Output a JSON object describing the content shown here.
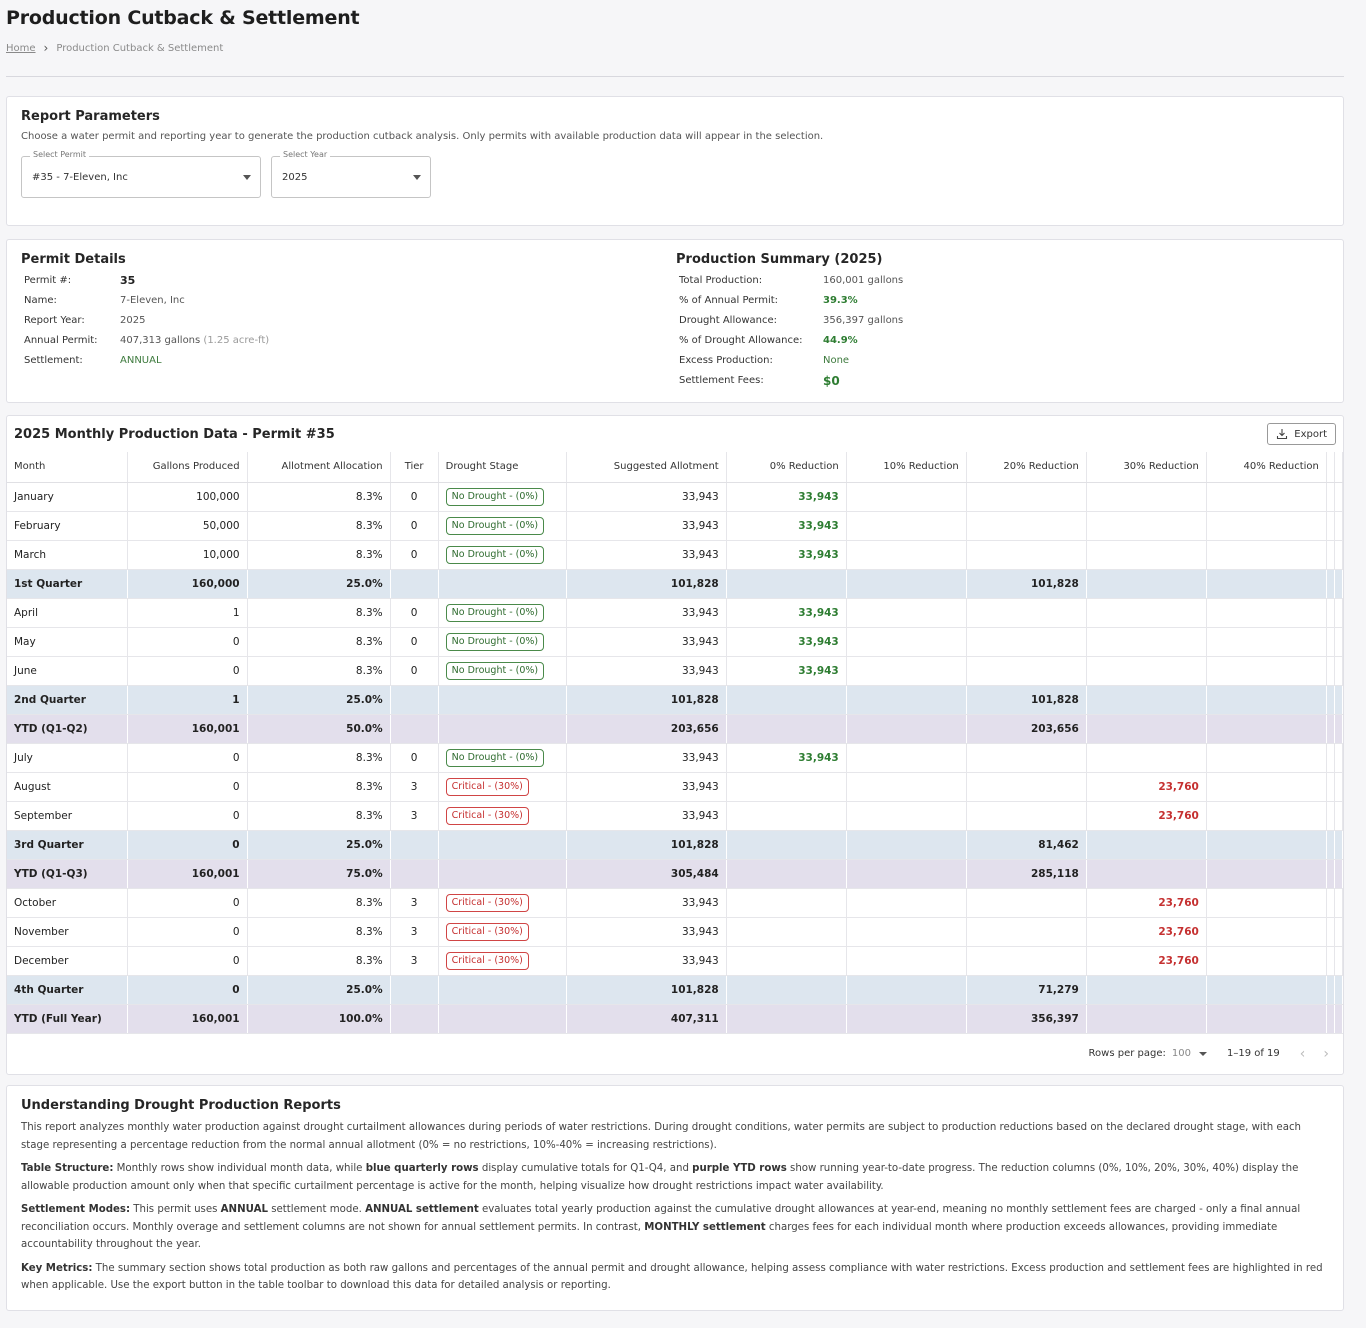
{
  "header": {
    "title": "Production Cutback & Settlement",
    "breadcrumb": {
      "home": "Home",
      "current": "Production Cutback & Settlement"
    }
  },
  "params": {
    "title": "Report Parameters",
    "description": "Choose a water permit and reporting year to generate the production cutback analysis. Only permits with available production data will appear in the selection.",
    "permit_label": "Select Permit",
    "permit_value": "#35 - 7-Eleven, Inc",
    "year_label": "Select Year",
    "year_value": "2025"
  },
  "permit_details": {
    "title": "Permit Details",
    "permit_no_label": "Permit #:",
    "permit_no": "35",
    "name_label": "Name:",
    "name": "7-Eleven, Inc",
    "year_label": "Report Year:",
    "year": "2025",
    "annual_label": "Annual Permit:",
    "annual": "407,313 gallons",
    "annual_acre": "(1.25 acre-ft)",
    "settlement_label": "Settlement:",
    "settlement": "ANNUAL"
  },
  "summary": {
    "title": "Production Summary (2025)",
    "total_label": "Total Production:",
    "total": "160,001 gallons",
    "pct_annual_label": "% of Annual Permit:",
    "pct_annual": "39.3%",
    "drought_label": "Drought Allowance:",
    "drought": "356,397 gallons",
    "pct_drought_label": "% of Drought Allowance:",
    "pct_drought": "44.9%",
    "excess_label": "Excess Production:",
    "excess": "None",
    "fees_label": "Settlement Fees:",
    "fees": "$0"
  },
  "table": {
    "title": "2025 Monthly Production Data - Permit #35",
    "export_label": "Export",
    "columns": [
      "Month",
      "Gallons Produced",
      "Allotment Allocation",
      "Tier",
      "Drought Stage",
      "Suggested Allotment",
      "0% Reduction",
      "10% Reduction",
      "20% Reduction",
      "30% Reduction",
      "40% Reduction"
    ],
    "rows": [
      {
        "type": "month",
        "month": "January",
        "gallons": "100,000",
        "alloc": "8.3%",
        "tier": "0",
        "stage": "No Drought - (0%)",
        "stage_kind": "ok",
        "suggested": "33,943",
        "r0": "33,943",
        "r10": "",
        "r20": "",
        "r30": "",
        "r40": ""
      },
      {
        "type": "month",
        "month": "February",
        "gallons": "50,000",
        "alloc": "8.3%",
        "tier": "0",
        "stage": "No Drought - (0%)",
        "stage_kind": "ok",
        "suggested": "33,943",
        "r0": "33,943",
        "r10": "",
        "r20": "",
        "r30": "",
        "r40": ""
      },
      {
        "type": "month",
        "month": "March",
        "gallons": "10,000",
        "alloc": "8.3%",
        "tier": "0",
        "stage": "No Drought - (0%)",
        "stage_kind": "ok",
        "suggested": "33,943",
        "r0": "33,943",
        "r10": "",
        "r20": "",
        "r30": "",
        "r40": ""
      },
      {
        "type": "quarter",
        "month": "1st Quarter",
        "gallons": "160,000",
        "alloc": "25.0%",
        "suggested": "101,828",
        "total": "101,828"
      },
      {
        "type": "month",
        "month": "April",
        "gallons": "1",
        "alloc": "8.3%",
        "tier": "0",
        "stage": "No Drought - (0%)",
        "stage_kind": "ok",
        "suggested": "33,943",
        "r0": "33,943",
        "r10": "",
        "r20": "",
        "r30": "",
        "r40": ""
      },
      {
        "type": "month",
        "month": "May",
        "gallons": "0",
        "alloc": "8.3%",
        "tier": "0",
        "stage": "No Drought - (0%)",
        "stage_kind": "ok",
        "suggested": "33,943",
        "r0": "33,943",
        "r10": "",
        "r20": "",
        "r30": "",
        "r40": ""
      },
      {
        "type": "month",
        "month": "June",
        "gallons": "0",
        "alloc": "8.3%",
        "tier": "0",
        "stage": "No Drought - (0%)",
        "stage_kind": "ok",
        "suggested": "33,943",
        "r0": "33,943",
        "r10": "",
        "r20": "",
        "r30": "",
        "r40": ""
      },
      {
        "type": "quarter",
        "month": "2nd Quarter",
        "gallons": "1",
        "alloc": "25.0%",
        "suggested": "101,828",
        "total": "101,828"
      },
      {
        "type": "ytd",
        "month": "YTD (Q1-Q2)",
        "gallons": "160,001",
        "alloc": "50.0%",
        "suggested": "203,656",
        "total": "203,656"
      },
      {
        "type": "month",
        "month": "July",
        "gallons": "0",
        "alloc": "8.3%",
        "tier": "0",
        "stage": "No Drought - (0%)",
        "stage_kind": "ok",
        "suggested": "33,943",
        "r0": "33,943",
        "r10": "",
        "r20": "",
        "r30": "",
        "r40": ""
      },
      {
        "type": "month",
        "month": "August",
        "gallons": "0",
        "alloc": "8.3%",
        "tier": "3",
        "stage": "Critical - (30%)",
        "stage_kind": "crit",
        "suggested": "33,943",
        "r0": "",
        "r10": "",
        "r20": "",
        "r30": "23,760",
        "r40": ""
      },
      {
        "type": "month",
        "month": "September",
        "gallons": "0",
        "alloc": "8.3%",
        "tier": "3",
        "stage": "Critical - (30%)",
        "stage_kind": "crit",
        "suggested": "33,943",
        "r0": "",
        "r10": "",
        "r20": "",
        "r30": "23,760",
        "r40": ""
      },
      {
        "type": "quarter",
        "month": "3rd Quarter",
        "gallons": "0",
        "alloc": "25.0%",
        "suggested": "101,828",
        "total": "81,462"
      },
      {
        "type": "ytd",
        "month": "YTD (Q1-Q3)",
        "gallons": "160,001",
        "alloc": "75.0%",
        "suggested": "305,484",
        "total": "285,118"
      },
      {
        "type": "month",
        "month": "October",
        "gallons": "0",
        "alloc": "8.3%",
        "tier": "3",
        "stage": "Critical - (30%)",
        "stage_kind": "crit",
        "suggested": "33,943",
        "r0": "",
        "r10": "",
        "r20": "",
        "r30": "23,760",
        "r40": ""
      },
      {
        "type": "month",
        "month": "November",
        "gallons": "0",
        "alloc": "8.3%",
        "tier": "3",
        "stage": "Critical - (30%)",
        "stage_kind": "crit",
        "suggested": "33,943",
        "r0": "",
        "r10": "",
        "r20": "",
        "r30": "23,760",
        "r40": ""
      },
      {
        "type": "month",
        "month": "December",
        "gallons": "0",
        "alloc": "8.3%",
        "tier": "3",
        "stage": "Critical - (30%)",
        "stage_kind": "crit",
        "suggested": "33,943",
        "r0": "",
        "r10": "",
        "r20": "",
        "r30": "23,760",
        "r40": ""
      },
      {
        "type": "quarter",
        "month": "4th Quarter",
        "gallons": "0",
        "alloc": "25.0%",
        "suggested": "101,828",
        "total": "71,279"
      },
      {
        "type": "ytd",
        "month": "YTD (Full Year)",
        "gallons": "160,001",
        "alloc": "100.0%",
        "suggested": "407,311",
        "total": "356,397"
      }
    ],
    "pager": {
      "rows_per_page_label": "Rows per page:",
      "rows_per_page": "100",
      "range": "1–19 of 19"
    }
  },
  "info": {
    "title": "Understanding Drought Production Reports",
    "p1": "This report analyzes monthly water production against drought curtailment allowances during periods of water restrictions. During drought conditions, water permits are subject to production reductions based on the declared drought stage, with each stage representing a percentage reduction from the normal annual allotment (0% = no restrictions, 10%-40% = increasing restrictions).",
    "p2_lead": "Table Structure:",
    "p2_a": " Monthly rows show individual month data, while ",
    "p2_b": "blue quarterly rows",
    "p2_c": " display cumulative totals for Q1-Q4, and ",
    "p2_d": "purple YTD rows",
    "p2_e": " show running year-to-date progress. The reduction columns (0%, 10%, 20%, 30%, 40%) display the allowable production amount only when that specific curtailment percentage is active for the month, helping visualize how drought restrictions impact water availability.",
    "p3_lead": "Settlement Modes:",
    "p3_a": " This permit uses ",
    "p3_b": "ANNUAL",
    "p3_c": " settlement mode. ",
    "p3_d": "ANNUAL settlement",
    "p3_e": " evaluates total yearly production against the cumulative drought allowances at year-end, meaning no monthly settlement fees are charged - only a final annual reconciliation occurs. Monthly overage and settlement columns are not shown for annual settlement permits. In contrast, ",
    "p3_f": "MONTHLY settlement",
    "p3_g": " charges fees for each individual month where production exceeds allowances, providing immediate accountability throughout the year.",
    "p4_lead": "Key Metrics:",
    "p4_a": " The summary section shows total production as both raw gallons and percentages of the annual permit and drought allowance, helping assess compliance with water restrictions. Excess production and settlement fees are highlighted in red when applicable. Use the export button in the table toolbar to download this data for detailed analysis or reporting."
  },
  "icons": {
    "export": "download-icon",
    "prev": "chevron-left-icon",
    "next": "chevron-right-icon"
  },
  "colors": {
    "quarter_row": "#dde6ef",
    "ytd_row": "#e3dfec",
    "ok": "#2e7d32",
    "critical": "#c53030"
  }
}
